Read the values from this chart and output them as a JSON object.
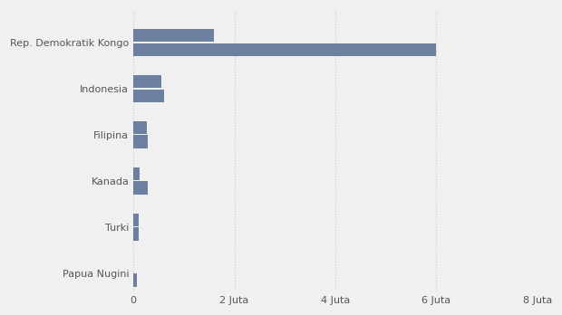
{
  "categories": [
    "Rep. Demokratik Kongo",
    "Indonesia",
    "Filipina",
    "Kanada",
    "Turki",
    "Papua Nugini"
  ],
  "values_top": [
    6000000,
    600000,
    290000,
    290000,
    100000,
    60000
  ],
  "values_bottom": [
    1600000,
    550000,
    260000,
    130000,
    100000,
    0
  ],
  "bar_color": "#6d80a0",
  "background_color": "#f0f0f0",
  "xlim": [
    0,
    8000000
  ],
  "xticks": [
    0,
    2000000,
    4000000,
    6000000,
    8000000
  ],
  "xtick_labels": [
    "0",
    "2 Juta",
    "4 Juta",
    "6 Juta",
    "8 Juta"
  ],
  "bar_height": 0.28,
  "bar_gap": 0.03,
  "label_fontsize": 8,
  "tick_fontsize": 8
}
